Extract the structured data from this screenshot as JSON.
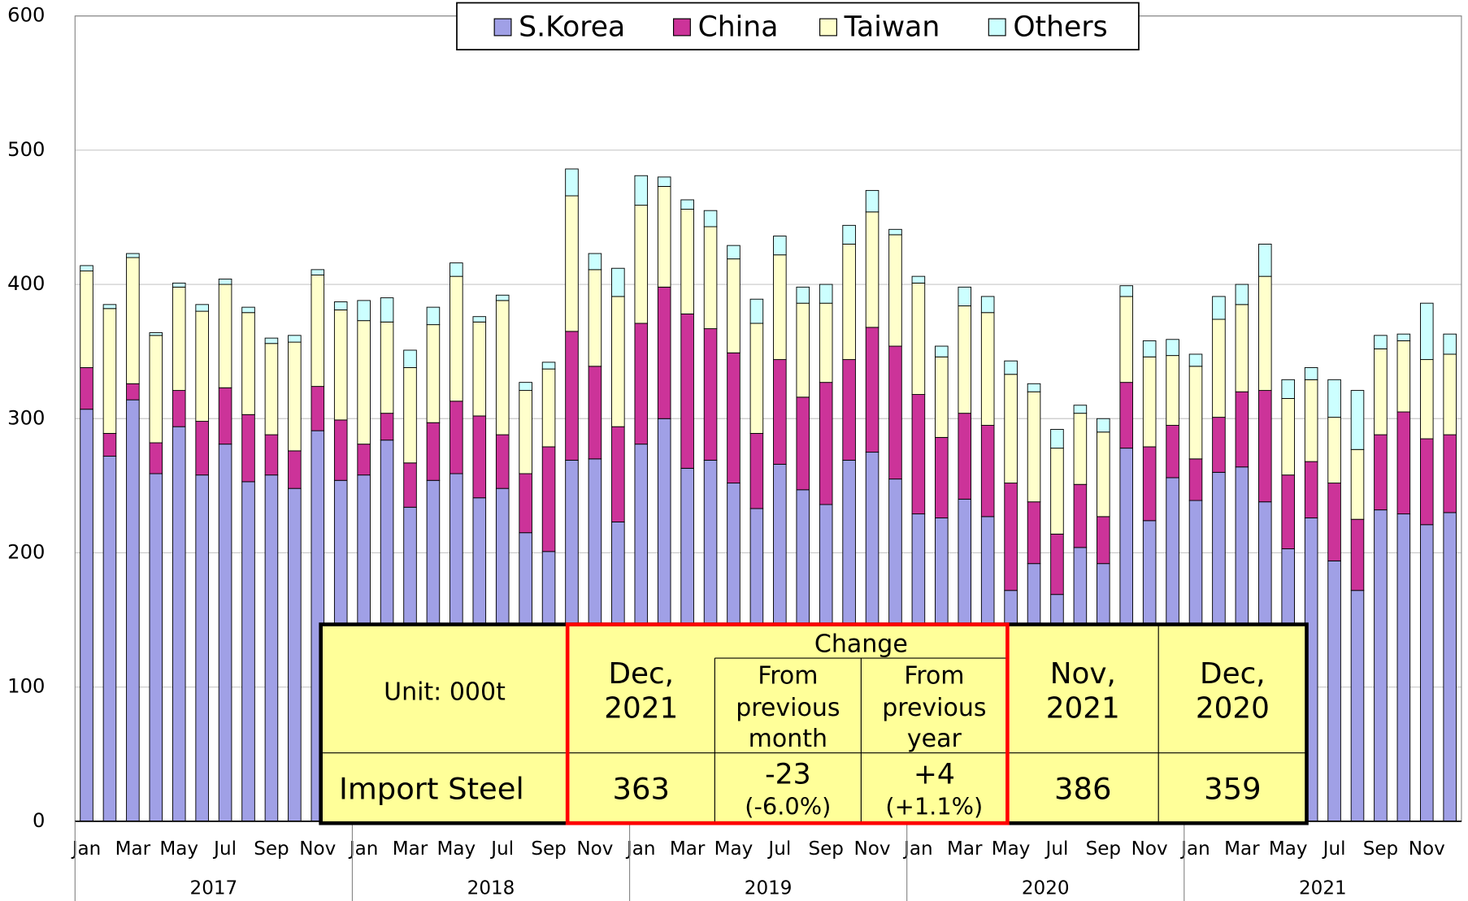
{
  "chart_data": {
    "type": "stacked_bar",
    "categories": [
      "Jan",
      null,
      "Mar",
      null,
      "May",
      null,
      "Jul",
      null,
      "Sep",
      null,
      "Nov",
      null,
      "Jan",
      null,
      "Mar",
      null,
      "May",
      null,
      "Jul",
      null,
      "Sep",
      null,
      "Nov",
      null,
      "Jan",
      null,
      "Mar",
      null,
      "May",
      null,
      "Jul",
      null,
      "Sep",
      null,
      "Nov",
      null,
      "Jan",
      null,
      "Mar",
      null,
      "May",
      null,
      "Jul",
      null,
      "Sep",
      null,
      "Nov",
      null,
      "Jan",
      null,
      "Mar",
      null,
      "May",
      null,
      "Jul",
      null,
      "Sep",
      null,
      "Nov",
      null
    ],
    "year_groups": [
      "2017",
      "2018",
      "2019",
      "2020",
      "2021"
    ],
    "series": [
      {
        "name": "S.Korea",
        "color": "#a0a0e6",
        "values": [
          307,
          272,
          314,
          259,
          294,
          258,
          281,
          253,
          258,
          248,
          291,
          254,
          258,
          284,
          234,
          254,
          259,
          241,
          248,
          215,
          201,
          269,
          270,
          223,
          281,
          300,
          263,
          269,
          252,
          233,
          266,
          247,
          236,
          269,
          275,
          255,
          229,
          226,
          240,
          227,
          172,
          192,
          169,
          204,
          192,
          278,
          224,
          256,
          239,
          260,
          264,
          238,
          203,
          226,
          194,
          172,
          232,
          229,
          221,
          230
        ]
      },
      {
        "name": "China",
        "color": "#cc3399",
        "values": [
          31,
          17,
          12,
          23,
          27,
          40,
          42,
          50,
          30,
          28,
          33,
          45,
          23,
          20,
          33,
          43,
          54,
          61,
          40,
          44,
          78,
          96,
          69,
          71,
          90,
          98,
          115,
          98,
          97,
          56,
          78,
          69,
          91,
          75,
          93,
          99,
          89,
          60,
          64,
          68,
          80,
          46,
          45,
          47,
          35,
          49,
          55,
          39,
          31,
          41,
          56,
          83,
          55,
          42,
          58,
          53,
          56,
          76,
          64,
          58
        ]
      },
      {
        "name": "Taiwan",
        "color": "#ffffcc",
        "values": [
          72,
          93,
          94,
          80,
          77,
          82,
          77,
          76,
          68,
          81,
          83,
          82,
          92,
          68,
          71,
          73,
          93,
          70,
          100,
          62,
          58,
          101,
          72,
          97,
          88,
          75,
          78,
          76,
          70,
          82,
          78,
          70,
          59,
          86,
          86,
          83,
          83,
          60,
          80,
          84,
          81,
          82,
          64,
          53,
          63,
          64,
          67,
          52,
          69,
          73,
          65,
          85,
          57,
          61,
          49,
          52,
          64,
          53,
          59,
          60
        ]
      },
      {
        "name": "Others",
        "color": "#ccffff",
        "values": [
          4,
          3,
          3,
          2,
          3,
          5,
          4,
          4,
          4,
          5,
          4,
          6,
          15,
          18,
          13,
          13,
          10,
          4,
          4,
          6,
          5,
          20,
          12,
          21,
          22,
          7,
          7,
          12,
          10,
          18,
          14,
          12,
          14,
          14,
          16,
          4,
          5,
          8,
          14,
          12,
          10,
          6,
          14,
          6,
          10,
          8,
          12,
          12,
          9,
          17,
          15,
          24,
          14,
          9,
          28,
          44,
          10,
          5,
          42,
          15
        ]
      }
    ],
    "ylim": [
      0,
      600
    ],
    "yticks": [
      0,
      100,
      200,
      300,
      400,
      500,
      600
    ],
    "grid": true,
    "legend": "top"
  },
  "table": {
    "unit": "Unit: 000t",
    "change": "Change",
    "headers": [
      [
        "Dec,",
        "2021"
      ],
      [
        "From",
        "previous",
        "month"
      ],
      [
        "From",
        "previous",
        "year"
      ],
      [
        "Nov,",
        "2021"
      ],
      [
        "Dec,",
        "2020"
      ]
    ],
    "row_label": "Import Steel",
    "values": [
      [
        "363"
      ],
      [
        "-23",
        "(-6.0%)"
      ],
      [
        "+4",
        "(+1.1%)"
      ],
      [
        "386"
      ],
      [
        "359"
      ]
    ]
  }
}
